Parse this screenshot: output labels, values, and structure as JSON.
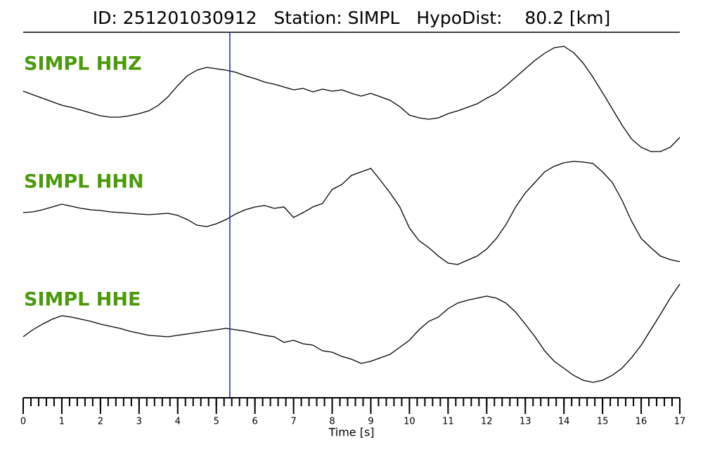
{
  "chart_data": {
    "type": "seismogram",
    "title": "ID: 251201030912   Station: SIMPL   HypoDist:    80.2 [km]",
    "xlabel": "Time [s]",
    "xlim": [
      0,
      17
    ],
    "xticks": [
      0,
      1,
      2,
      3,
      4,
      5,
      6,
      7,
      8,
      9,
      10,
      11,
      12,
      13,
      14,
      15,
      16,
      17
    ],
    "xminor_step": 0.2,
    "ylim": [
      -80,
      80
    ],
    "pick_time": 5.35,
    "pick_color": "#1f1fd0",
    "label_color": "#4a9a0a",
    "line_color": "#000000",
    "x": [
      0,
      0.25,
      0.5,
      0.75,
      1,
      1.25,
      1.5,
      1.75,
      2,
      2.25,
      2.5,
      2.75,
      3,
      3.25,
      3.5,
      3.75,
      4,
      4.25,
      4.5,
      4.75,
      5,
      5.25,
      5.5,
      5.75,
      6,
      6.25,
      6.5,
      6.75,
      7,
      7.25,
      7.5,
      7.75,
      8,
      8.25,
      8.5,
      8.75,
      9,
      9.25,
      9.5,
      9.75,
      10,
      10.25,
      10.5,
      10.75,
      11,
      11.25,
      11.5,
      11.75,
      12,
      12.25,
      12.5,
      12.75,
      13,
      13.25,
      13.5,
      13.75,
      14,
      14.25,
      14.5,
      14.75,
      15,
      15.25,
      15.5,
      15.75,
      16,
      16.25,
      16.5,
      16.75,
      17
    ],
    "series": [
      {
        "name": "SIMPL HHZ",
        "values": [
          12,
          7,
          2,
          -3,
          -8,
          -11,
          -15,
          -19,
          -23,
          -25,
          -25,
          -23,
          -20,
          -16,
          -8,
          4,
          20,
          34,
          42,
          46,
          44,
          42,
          39,
          34,
          30,
          25,
          22,
          18,
          14,
          16,
          11,
          15,
          12,
          14,
          9,
          5,
          9,
          4,
          -1,
          -10,
          -22,
          -26,
          -28,
          -26,
          -20,
          -16,
          -11,
          -6,
          2,
          9,
          20,
          32,
          44,
          56,
          66,
          74,
          76,
          67,
          52,
          32,
          10,
          -13,
          -36,
          -56,
          -68,
          -74,
          -74,
          -68,
          -54
        ]
      },
      {
        "name": "SIMPL HHN",
        "values": [
          7,
          8,
          11,
          15,
          19,
          16,
          13,
          11,
          10,
          8,
          7,
          6,
          5,
          4,
          5,
          6,
          3,
          -3,
          -11,
          -13,
          -9,
          -3,
          5,
          11,
          15,
          17,
          13,
          15,
          0,
          7,
          15,
          20,
          40,
          47,
          60,
          65,
          70,
          53,
          35,
          15,
          -15,
          -33,
          -43,
          -55,
          -65,
          -67,
          -61,
          -55,
          -45,
          -30,
          -10,
          15,
          35,
          50,
          65,
          73,
          78,
          80,
          79,
          77,
          65,
          50,
          25,
          -5,
          -30,
          -43,
          -55,
          -60,
          -63
        ]
      },
      {
        "name": "SIMPL HHE",
        "values": [
          -2,
          8,
          16,
          23,
          28,
          26,
          23,
          20,
          16,
          13,
          10,
          6,
          3,
          0,
          -1,
          -2,
          0,
          2,
          4,
          6,
          8,
          10,
          8,
          6,
          3,
          0,
          -2,
          -10,
          -7,
          -12,
          -14,
          -22,
          -24,
          -30,
          -34,
          -40,
          -37,
          -32,
          -27,
          -17,
          -7,
          8,
          20,
          26,
          38,
          46,
          50,
          53,
          56,
          53,
          46,
          33,
          16,
          -2,
          -22,
          -37,
          -47,
          -57,
          -64,
          -67,
          -64,
          -57,
          -47,
          -32,
          -14,
          8,
          30,
          53,
          73
        ]
      }
    ]
  }
}
